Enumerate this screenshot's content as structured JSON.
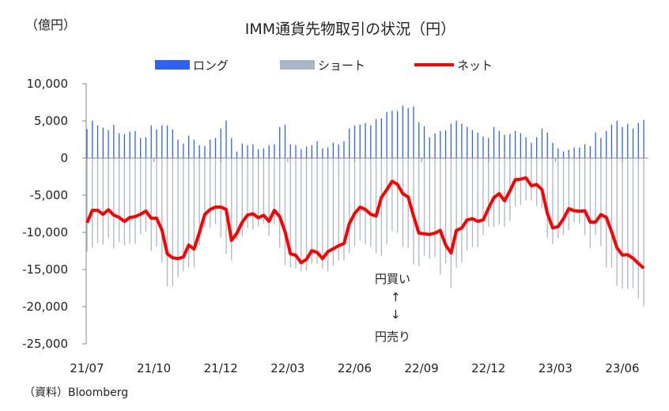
{
  "chart_data": {
    "type": "bar",
    "title": "IMM通貨先物取引の状況（円）",
    "ylabel": "（億円）",
    "source": "（資料）Bloomberg",
    "ylim": [
      -25000,
      10000
    ],
    "yticks": [
      10000,
      5000,
      0,
      -5000,
      -10000,
      -15000,
      -20000,
      -25000
    ],
    "ytick_labels": [
      "10,000",
      "5,000",
      "0",
      "-5,000",
      "-10,000",
      "-15,000",
      "-20,000",
      "-25,000"
    ],
    "xtick_labels": [
      "21/07",
      "21/10",
      "21/12",
      "22/03",
      "22/06",
      "22/09",
      "22/12",
      "23/03",
      "23/06"
    ],
    "xtick_week_index": [
      0,
      12.5,
      25,
      37.5,
      50,
      62.5,
      75,
      87.5,
      100
    ],
    "legend": {
      "placement": "top",
      "long": "ロング",
      "short": "ショート",
      "net": "ネット"
    },
    "annotations": {
      "buy": "円買い",
      "up_arrow": "↑",
      "down_arrow": "↓",
      "sell": "円売り"
    },
    "colors": {
      "long": "#2f62f0",
      "short": "#a9b7c9",
      "net": "#ff0000"
    },
    "series": [
      {
        "name": "ロング",
        "values": [
          3900,
          5040,
          4400,
          4080,
          3760,
          4500,
          3340,
          3230,
          3550,
          3660,
          2700,
          2800,
          4400,
          3870,
          4400,
          4400,
          3870,
          2480,
          1950,
          3020,
          2480,
          1740,
          1630,
          2480,
          2700,
          3980,
          5040,
          2700,
          890,
          1950,
          1740,
          1850,
          1200,
          1310,
          1740,
          1850,
          4190,
          4500,
          1850,
          1740,
          1200,
          1530,
          1740,
          2270,
          1310,
          1420,
          2060,
          1850,
          2270,
          3980,
          4400,
          4500,
          4720,
          4400,
          5250,
          5360,
          6210,
          6390,
          6320,
          7060,
          6750,
          6960,
          4830,
          4300,
          2800,
          3340,
          3660,
          3760,
          4620,
          5040,
          4620,
          4190,
          3760,
          3440,
          2910,
          2700,
          4190,
          3660,
          3120,
          3230,
          3660,
          3340,
          2800,
          2060,
          2800,
          3980,
          3440,
          2060,
          1310,
          890,
          1100,
          1420,
          1420,
          1850,
          1630,
          3440,
          2700,
          3660,
          4500,
          5040,
          4190,
          4620,
          3980,
          4720,
          5150
        ]
      },
      {
        "name": "ショート",
        "values": [
          -12600,
          -12070,
          -11430,
          -11640,
          -10720,
          -12180,
          -11320,
          -11750,
          -11540,
          -11540,
          -10260,
          -9940,
          -12500,
          -11960,
          -14090,
          -17290,
          -17290,
          -16010,
          -15270,
          -14730,
          -14730,
          -11750,
          -9230,
          -9410,
          -8880,
          -10690,
          -12920,
          -13770,
          -11000,
          -10580,
          -9410,
          -9620,
          -9230,
          -8770,
          -10470,
          -8880,
          -12070,
          -14410,
          -14730,
          -14840,
          -15270,
          -15160,
          -14200,
          -14200,
          -14840,
          -15270,
          -14520,
          -13770,
          -13770,
          -12820,
          -11860,
          -11110,
          -11640,
          -11960,
          -12820,
          -13140,
          -11640,
          -9830,
          -10050,
          -11960,
          -12070,
          -14310,
          -14560,
          -13140,
          -13560,
          -13350,
          -15690,
          -14200,
          -17500,
          -14730,
          -14090,
          -12500,
          -11960,
          -11960,
          -10370,
          -9300,
          -9300,
          -8980,
          -9230,
          -8450,
          -6530,
          -6320,
          -5680,
          -5680,
          -6530,
          -6750,
          -10790,
          -11540,
          -10790,
          -10370,
          -9730,
          -8660,
          -8770,
          -10370,
          -12070,
          -10370,
          -11860,
          -14730,
          -14730,
          -17180,
          -17610,
          -17610,
          -17500,
          -18890,
          -19950
        ]
      },
      {
        "name": "ネット",
        "values": [
          -8700,
          -7030,
          -7030,
          -7560,
          -6960,
          -7680,
          -7980,
          -8520,
          -7990,
          -7880,
          -7560,
          -7140,
          -8100,
          -8090,
          -9690,
          -12890,
          -13420,
          -13530,
          -13320,
          -11710,
          -12250,
          -10010,
          -7600,
          -6930,
          -6600,
          -6600,
          -6900,
          -11070,
          -10110,
          -8630,
          -7670,
          -7500,
          -8030,
          -7700,
          -8500,
          -7030,
          -7880,
          -9910,
          -12880,
          -13100,
          -14070,
          -13630,
          -12460,
          -12700,
          -13530,
          -12600,
          -12200,
          -11800,
          -11500,
          -8840,
          -7460,
          -6610,
          -6920,
          -7560,
          -7800,
          -5300,
          -4260,
          -3120,
          -3550,
          -4790,
          -5250,
          -7800,
          -10100,
          -10200,
          -10280,
          -10100,
          -9750,
          -11700,
          -12770,
          -9750,
          -9400,
          -8330,
          -8160,
          -8510,
          -8330,
          -6740,
          -5320,
          -4790,
          -5750,
          -4430,
          -2910,
          -2840,
          -2660,
          -3720,
          -3550,
          -4260,
          -7450,
          -9400,
          -9220,
          -8160,
          -6810,
          -7090,
          -7160,
          -7090,
          -8620,
          -8620,
          -7620,
          -7980,
          -9930,
          -12060,
          -13050,
          -13010,
          -13480,
          -14180,
          -14820
        ]
      }
    ]
  }
}
